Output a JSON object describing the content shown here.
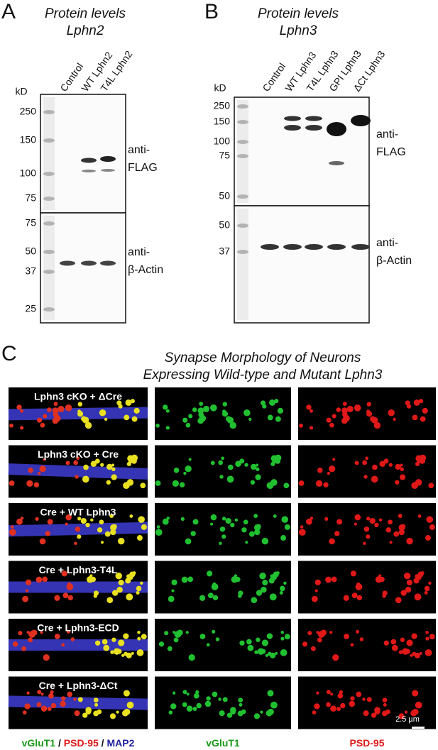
{
  "panels": [
    {
      "label": "A",
      "title": [
        "Protein levels",
        "Lphn2"
      ],
      "unit": "kD",
      "lanes": [
        "Control",
        "WT Lphn2",
        "T4L Lphn2"
      ],
      "blots": [
        {
          "markers": [
            250,
            150,
            100,
            75
          ],
          "antibody": [
            "anti-",
            "FLAG"
          ]
        },
        {
          "markers": [
            75,
            50,
            37,
            25
          ],
          "antibody": [
            "anti-",
            "β-Actin"
          ]
        }
      ]
    },
    {
      "label": "B",
      "title": [
        "Protein levels",
        "Lphn3"
      ],
      "unit": "kD",
      "lanes": [
        "Control",
        "WT Lphn3",
        "T4L Lphn3",
        "GPI Lphn3",
        "ΔCt Lphn3"
      ],
      "blots": [
        {
          "markers": [
            250,
            150,
            100,
            75,
            50
          ],
          "antibody": [
            "anti-",
            "FLAG"
          ]
        },
        {
          "markers": [
            50,
            37
          ],
          "antibody": [
            "anti-",
            "β-Actin"
          ]
        }
      ]
    }
  ],
  "panel_c": {
    "label": "C",
    "title": [
      "Synapse Morphology of Neurons",
      "Expressing Wild-type and Mutant Lphn3"
    ],
    "rows": [
      "Lphn3 cKO + ΔCre",
      "Lphn3 cKO + Cre",
      "Cre + WT Lphn3",
      "Cre + Lphn3-T4L",
      "Cre + Lphn3-ECD",
      "Cre + Lphn3-ΔCt"
    ],
    "scale_bar": "2.5 µm",
    "column_labels": [
      [
        "vGluT1",
        " / ",
        "PSD-95",
        " / ",
        "MAP2"
      ],
      [
        "vGluT1"
      ],
      [
        "PSD-95"
      ]
    ]
  }
}
